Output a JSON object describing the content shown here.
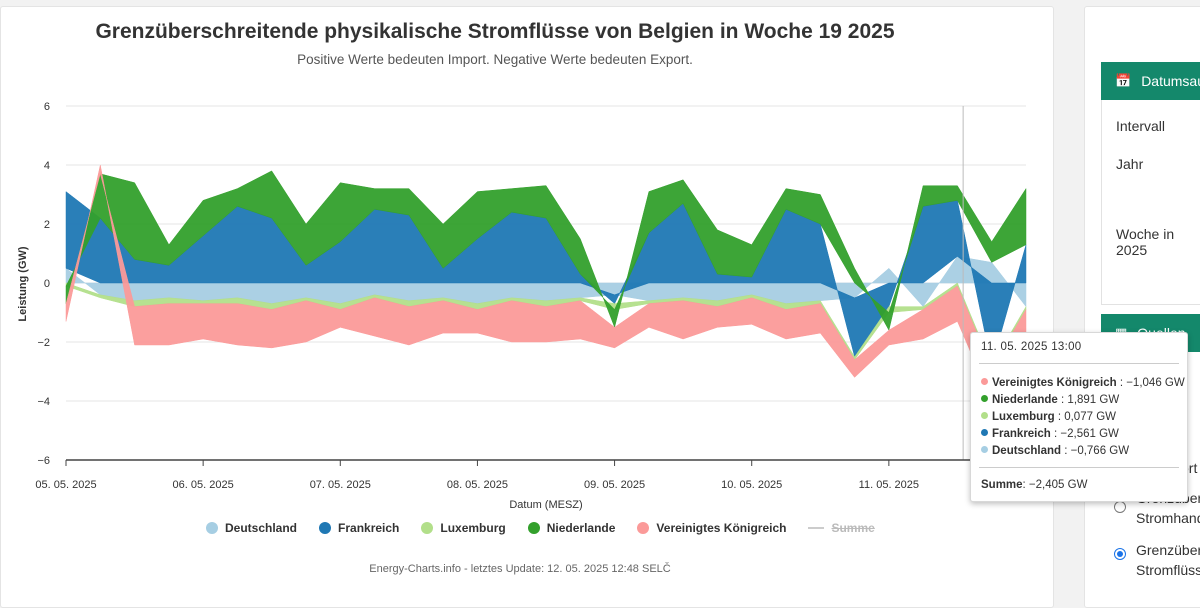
{
  "chart": {
    "title": "Grenzüberschreitende physikalische Stromflüsse von Belgien in Woche 19 2025",
    "subtitle": "Positive Werte bedeuten Import. Negative Werte bedeuten Export.",
    "credits": "Energy-Charts.info - letztes Update: 12. 05. 2025 12:48 SELČ"
  },
  "chart_data": {
    "type": "area",
    "stacked": true,
    "title": "Grenzüberschreitende physikalische Stromflüsse von Belgien in Woche 19 2025",
    "subtitle": "Positive Werte bedeuten Import. Negative Werte bedeuten Export.",
    "xlabel": "Datum (MESZ)",
    "ylabel": "Leistung (GW)",
    "ylim": [
      -6,
      6
    ],
    "yticks": [
      "6",
      "4",
      "2",
      "0",
      "−2",
      "−4",
      "−6"
    ],
    "xticks": [
      "05. 05. 2025",
      "06. 05. 2025",
      "07. 05. 2025",
      "08. 05. 2025",
      "09. 05. 2025",
      "10. 05. 2025",
      "11. 05. 2025"
    ],
    "x_hours": [
      0,
      6,
      12,
      18,
      24,
      30,
      36,
      42,
      48,
      54,
      60,
      66,
      72,
      78,
      84,
      90,
      96,
      102,
      108,
      114,
      120,
      126,
      132,
      138,
      144,
      150,
      156,
      162,
      168
    ],
    "series": [
      {
        "name": "Deutschland",
        "color": "#a6cee3",
        "values": [
          0.5,
          -0.4,
          -0.6,
          -0.5,
          -0.6,
          -0.5,
          -0.7,
          -0.5,
          -0.7,
          -0.4,
          -0.6,
          -0.5,
          -0.7,
          -0.5,
          -0.6,
          -0.5,
          -0.4,
          -0.6,
          -0.5,
          -0.6,
          -0.4,
          -0.7,
          -0.6,
          -0.5,
          0.5,
          -0.8,
          0.9,
          0.7,
          -0.8
        ]
      },
      {
        "name": "Frankreich",
        "color": "#1f78b4",
        "values": [
          2.6,
          2.2,
          0.8,
          0.6,
          1.6,
          2.6,
          2.2,
          0.6,
          1.4,
          2.5,
          2.3,
          0.5,
          1.5,
          2.4,
          2.2,
          0.3,
          -0.3,
          1.7,
          2.7,
          0.3,
          0.2,
          2.5,
          2.0,
          -2.0,
          -0.8,
          2.6,
          1.9,
          -2.8,
          1.3
        ]
      },
      {
        "name": "Luxembourg",
        "color": "#b2df8a",
        "values": [
          -0.1,
          -0.1,
          -0.2,
          -0.2,
          -0.1,
          -0.2,
          -0.2,
          -0.1,
          -0.2,
          -0.1,
          -0.2,
          -0.1,
          -0.2,
          -0.1,
          -0.2,
          -0.1,
          -0.2,
          -0.1,
          -0.1,
          -0.2,
          -0.1,
          -0.2,
          -0.1,
          -0.1,
          -0.2,
          -0.1,
          -0.1,
          -0.1,
          -0.1
        ]
      },
      {
        "name": "Niederlande",
        "color": "#33a02c",
        "values": [
          -0.6,
          1.5,
          2.6,
          0.7,
          1.2,
          0.6,
          1.6,
          1.4,
          2.0,
          0.7,
          0.9,
          1.5,
          1.6,
          0.8,
          1.1,
          1.2,
          -0.6,
          1.4,
          0.8,
          1.5,
          1.1,
          0.7,
          1.0,
          0.5,
          -0.6,
          0.7,
          0.5,
          0.7,
          1.9
        ]
      },
      {
        "name": "Vereinigtes Königreich",
        "color": "#fb9a99",
        "values": [
          -0.6,
          0.3,
          -1.3,
          -1.4,
          -1.2,
          -1.4,
          -1.3,
          -1.4,
          -0.6,
          -1.3,
          -1.3,
          -1.1,
          -0.8,
          -1.4,
          -1.2,
          -1.3,
          -0.7,
          -0.8,
          -1.3,
          -0.7,
          -0.9,
          -1.0,
          -1.0,
          -0.6,
          -0.5,
          -1.0,
          -1.2,
          -1.1,
          -1.0
        ]
      },
      {
        "name": "Summe",
        "color": "#cccccc",
        "hidden": true,
        "values": []
      }
    ]
  },
  "legend": {
    "items": [
      {
        "label": "Deutschland",
        "color": "#a6cee3"
      },
      {
        "label": "Frankreich",
        "color": "#1f78b4"
      },
      {
        "label": "Luxemburg",
        "color": "#b2df8a"
      },
      {
        "label": "Niederlande",
        "color": "#33a02c"
      },
      {
        "label": "Vereinigtes Königreich",
        "color": "#fb9a99"
      },
      {
        "label": "Summe",
        "color": "#cccccc",
        "hidden": true
      }
    ]
  },
  "tooltip": {
    "header": "11. 05. 2025 13:00",
    "rows": [
      {
        "name": "Vereinigtes Königreich",
        "value": ": −1,046 GW",
        "color": "#fb9a99"
      },
      {
        "name": "Niederlande",
        "value": ": 1,891 GW",
        "color": "#33a02c"
      },
      {
        "name": "Luxemburg",
        "value": ": 0,077 GW",
        "color": "#b2df8a"
      },
      {
        "name": "Frankreich",
        "value": ": −2,561 GW",
        "color": "#1f78b4"
      },
      {
        "name": "Deutschland",
        "value": ": −0,766 GW",
        "color": "#a6cee3"
      }
    ],
    "sum_name": "Summe",
    "sum_value": ": −2,405 GW"
  },
  "sidebar": {
    "panel1_title": "Datumsau",
    "interval_label": "Intervall",
    "year_label": "Jahr",
    "week_label": "Woche in 2025",
    "panel2_title": "Quellen",
    "partial_text_1": "h",
    "partial_text_2": "ort",
    "options": [
      {
        "line1": "Grenzübers",
        "line2": "Stromhand",
        "checked": false
      },
      {
        "line1": "Grenzübers",
        "line2": "Stromflüsse",
        "checked": true
      }
    ]
  }
}
